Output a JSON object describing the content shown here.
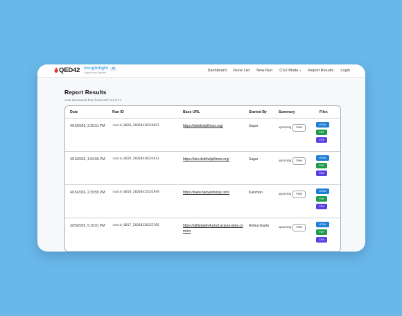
{
  "nav": {
    "logo": "QED42",
    "brand_name": "Insightlight",
    "ai_badge": "AI",
    "brand_sub": "Lighthouse Applied",
    "links": [
      "Dashboard",
      "Runs List",
      "New Run",
      "CSV Mode",
      "Report Results",
      "Login"
    ]
  },
  "page": {
    "title": "Report Results",
    "subtitle_prefix": "Auto-discovered from ",
    "subtitle_code": "backend/results",
    "subtitle_suffix": "."
  },
  "table": {
    "headers": [
      "Date",
      "Run ID",
      "Base URL",
      "Started By",
      "Summary",
      "Files"
    ],
    "view_label": "View",
    "file_labels": [
      "HTML",
      "PDF",
      "CSV"
    ],
    "rows": [
      {
        "date": "4/16/2026, 3:25:51 PM",
        "run_id": "runid_0020_20260416150822",
        "url": "https://debthelpillinois.org/",
        "by": "Sagar",
        "status": "upcoming"
      },
      {
        "date": "4/16/2026, 1:53:55 PM",
        "run_id": "runid_0019_20260416133613",
        "url": "https://dev.debthelpillinois.org/",
        "by": "Sagar",
        "status": "upcoming"
      },
      {
        "date": "4/15/2026, 2:29:55 PM",
        "run_id": "runid_0018_20260415131949",
        "url": "https://www.banyanliving.com/",
        "by": "Kanchan",
        "status": "upcoming"
      },
      {
        "date": "3/26/2026, 5:16:01 PM",
        "run_id": "runid_0017_20260326155705",
        "url": "https://alldatadev4.prod.acquia-sites.com/en",
        "by": "Ambuj Gupta",
        "status": "upcoming"
      }
    ]
  },
  "colors": {
    "background": "#6ab8ea",
    "brand": "#4aa6ec",
    "logo_red": "#e0342a",
    "html_badge": "#1f7fd6",
    "pdf_badge": "#1e9a4a",
    "csv_badge": "#5a3fe0"
  }
}
